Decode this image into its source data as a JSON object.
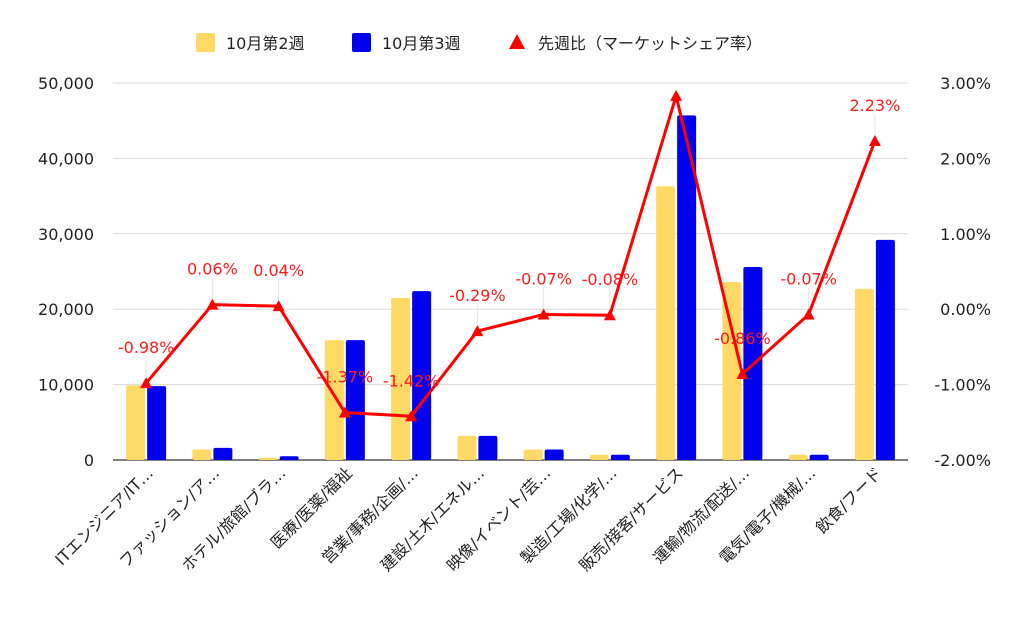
{
  "chart_data": {
    "type": "bar",
    "categories": [
      "ITエンジニア/IT…",
      "ファッション/ア…",
      "ホテル/旅館/ブラ…",
      "医療/医薬/福祉",
      "営業/事務/企画/…",
      "建設/土木/エネル…",
      "映像/イベント/芸…",
      "製造/工場/化学/…",
      "販売/接客/サービス",
      "運輸/物流/配送/…",
      "電気/電子/機械/…",
      "飲食/フード"
    ],
    "series": [
      {
        "name": "10月第2週",
        "type": "bar",
        "axis": "left",
        "color": "#ffd966",
        "values": [
          9900,
          1400,
          300,
          15900,
          21500,
          3200,
          1400,
          700,
          36300,
          23600,
          700,
          22700
        ]
      },
      {
        "name": "10月第3週",
        "type": "bar",
        "axis": "left",
        "color": "#0000ee",
        "values": [
          9800,
          1600,
          500,
          15900,
          22400,
          3200,
          1400,
          700,
          45700,
          25600,
          700,
          29200
        ]
      },
      {
        "name": "先週比（マーケットシェア率）",
        "type": "line",
        "axis": "right",
        "color": "#ff0000",
        "values": [
          -0.98,
          0.06,
          0.04,
          -1.37,
          -1.42,
          -0.29,
          -0.07,
          -0.08,
          2.83,
          -0.86,
          -0.07,
          2.23
        ],
        "labels": [
          "-0.98%",
          "0.06%",
          "0.04%",
          "-1.37%",
          "-1.42%",
          "-0.29%",
          "-0.07%",
          "-0.08%",
          "",
          "-0.86%",
          "-0.07%",
          "2.23%"
        ]
      }
    ],
    "y_left": {
      "min": 0,
      "max": 50000,
      "ticks": [
        "0",
        "10,000",
        "20,000",
        "30,000",
        "40,000",
        "50,000"
      ]
    },
    "y_right": {
      "min": -2,
      "max": 3,
      "ticks": [
        "-2.00%",
        "-1.00%",
        "0.00%",
        "1.00%",
        "2.00%",
        "3.00%"
      ]
    },
    "legend_position": "top",
    "grid": true
  }
}
